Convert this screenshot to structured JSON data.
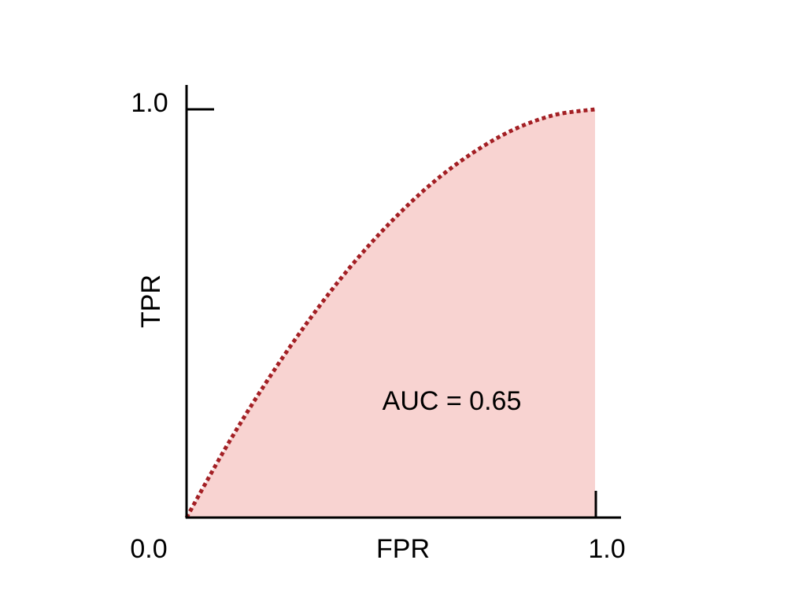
{
  "chart_data": {
    "type": "area",
    "title": "",
    "xlabel": "FPR",
    "ylabel": "TPR",
    "xlim": [
      0,
      1
    ],
    "ylim": [
      0,
      1
    ],
    "x_tick_labels": [
      "0.0",
      "1.0"
    ],
    "y_tick_labels": [
      "1.0"
    ],
    "grid": false,
    "annotation": "AUC = 0.65",
    "x": [
      0,
      0.1,
      0.2,
      0.3,
      0.4,
      0.5,
      0.6,
      0.7,
      0.8,
      0.9,
      1.0
    ],
    "series": [
      {
        "values": [
          0,
          0.178,
          0.339,
          0.484,
          0.613,
          0.724,
          0.818,
          0.893,
          0.95,
          0.986,
          1.0
        ]
      }
    ],
    "colors": {
      "fill": "#f8d3d1",
      "line": "#a31f24",
      "axes": "#000000"
    },
    "line_style": "dotted"
  }
}
